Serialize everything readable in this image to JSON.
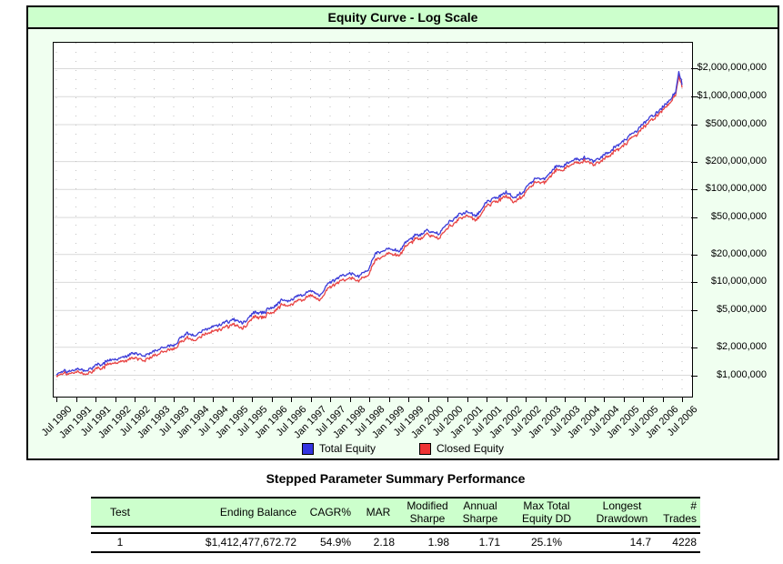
{
  "chart_data": {
    "type": "line",
    "title": "Equity Curve - Log Scale",
    "y_scale": "log",
    "ylim": [
      600000,
      3800000000
    ],
    "ylim_log10": [
      5.77,
      9.58
    ],
    "grid": "on",
    "legend_position": "bottom-center",
    "x_tick_labels": [
      "Jul 1990",
      "Jan 1991",
      "Jul 1991",
      "Jan 1992",
      "Jul 1992",
      "Jan 1993",
      "Jul 1993",
      "Jan 1994",
      "Jul 1994",
      "Jan 1995",
      "Jul 1995",
      "Jan 1996",
      "Jul 1996",
      "Jan 1997",
      "Jul 1997",
      "Jan 1998",
      "Jul 1998",
      "Jan 1999",
      "Jul 1999",
      "Jan 2000",
      "Jul 2000",
      "Jan 2001",
      "Jul 2001",
      "Jan 2002",
      "Jul 2002",
      "Jan 2003",
      "Jul 2003",
      "Jan 2004",
      "Jul 2004",
      "Jan 2005",
      "Jul 2005",
      "Jan 2006",
      "Jul 2006"
    ],
    "y_ticks": [
      {
        "label": "$2,000,000,000",
        "value": 2000000000
      },
      {
        "label": "$1,000,000,000",
        "value": 1000000000
      },
      {
        "label": "$500,000,000",
        "value": 500000000
      },
      {
        "label": "$200,000,000",
        "value": 200000000
      },
      {
        "label": "$100,000,000",
        "value": 100000000
      },
      {
        "label": "$50,000,000",
        "value": 50000000
      },
      {
        "label": "$20,000,000",
        "value": 20000000
      },
      {
        "label": "$10,000,000",
        "value": 10000000
      },
      {
        "label": "$5,000,000",
        "value": 5000000
      },
      {
        "label": "$2,000,000",
        "value": 2000000
      },
      {
        "label": "$1,000,000",
        "value": 1000000
      }
    ],
    "x_months_start": "Jul 1990",
    "x_months_end": "Jul 2006",
    "series": [
      {
        "name": "Total Equity",
        "color": "#3b3bd8",
        "anchors_month_log10usd": [
          [
            0,
            6.01
          ],
          [
            6,
            6.08
          ],
          [
            9,
            6.05
          ],
          [
            12,
            6.11
          ],
          [
            18,
            6.17
          ],
          [
            24,
            6.23
          ],
          [
            27,
            6.2
          ],
          [
            30,
            6.27
          ],
          [
            36,
            6.32
          ],
          [
            40,
            6.45
          ],
          [
            42,
            6.42
          ],
          [
            48,
            6.52
          ],
          [
            54,
            6.6
          ],
          [
            57,
            6.56
          ],
          [
            60,
            6.66
          ],
          [
            66,
            6.71
          ],
          [
            69,
            6.8
          ],
          [
            72,
            6.82
          ],
          [
            78,
            6.91
          ],
          [
            81,
            6.87
          ],
          [
            84,
            7.01
          ],
          [
            90,
            7.11
          ],
          [
            93,
            7.07
          ],
          [
            96,
            7.16
          ],
          [
            98,
            7.31
          ],
          [
            102,
            7.36
          ],
          [
            105,
            7.33
          ],
          [
            108,
            7.46
          ],
          [
            114,
            7.56
          ],
          [
            117,
            7.52
          ],
          [
            120,
            7.63
          ],
          [
            123,
            7.71
          ],
          [
            126,
            7.76
          ],
          [
            129,
            7.72
          ],
          [
            132,
            7.86
          ],
          [
            138,
            7.96
          ],
          [
            141,
            7.92
          ],
          [
            144,
            8.01
          ],
          [
            147,
            8.11
          ],
          [
            150,
            8.12
          ],
          [
            153,
            8.24
          ],
          [
            156,
            8.26
          ],
          [
            159,
            8.32
          ],
          [
            162,
            8.34
          ],
          [
            165,
            8.3
          ],
          [
            168,
            8.37
          ],
          [
            171,
            8.45
          ],
          [
            174,
            8.53
          ],
          [
            177,
            8.6
          ],
          [
            180,
            8.69
          ],
          [
            183,
            8.8
          ],
          [
            186,
            8.89
          ],
          [
            188,
            8.96
          ],
          [
            190,
            9.04
          ],
          [
            191,
            9.26
          ],
          [
            192,
            9.15
          ]
        ]
      },
      {
        "name": "Closed Equity",
        "color": "#e84444",
        "anchors_month_log10usd": [
          [
            0,
            5.99
          ],
          [
            6,
            6.05
          ],
          [
            9,
            6.01
          ],
          [
            12,
            6.07
          ],
          [
            18,
            6.13
          ],
          [
            24,
            6.18
          ],
          [
            27,
            6.15
          ],
          [
            30,
            6.22
          ],
          [
            36,
            6.28
          ],
          [
            40,
            6.4
          ],
          [
            42,
            6.37
          ],
          [
            48,
            6.47
          ],
          [
            54,
            6.55
          ],
          [
            57,
            6.5
          ],
          [
            60,
            6.61
          ],
          [
            66,
            6.66
          ],
          [
            69,
            6.75
          ],
          [
            72,
            6.77
          ],
          [
            78,
            6.86
          ],
          [
            81,
            6.82
          ],
          [
            84,
            6.96
          ],
          [
            90,
            7.06
          ],
          [
            93,
            7.02
          ],
          [
            96,
            7.1
          ],
          [
            98,
            7.24
          ],
          [
            102,
            7.31
          ],
          [
            105,
            7.28
          ],
          [
            108,
            7.42
          ],
          [
            114,
            7.52
          ],
          [
            117,
            7.47
          ],
          [
            120,
            7.58
          ],
          [
            123,
            7.66
          ],
          [
            126,
            7.72
          ],
          [
            129,
            7.67
          ],
          [
            132,
            7.82
          ],
          [
            138,
            7.92
          ],
          [
            141,
            7.87
          ],
          [
            144,
            7.97
          ],
          [
            147,
            8.07
          ],
          [
            150,
            8.08
          ],
          [
            153,
            8.2
          ],
          [
            156,
            8.22
          ],
          [
            159,
            8.28
          ],
          [
            162,
            8.31
          ],
          [
            165,
            8.26
          ],
          [
            168,
            8.33
          ],
          [
            171,
            8.41
          ],
          [
            174,
            8.48
          ],
          [
            177,
            8.56
          ],
          [
            180,
            8.65
          ],
          [
            183,
            8.76
          ],
          [
            186,
            8.86
          ],
          [
            188,
            8.93
          ],
          [
            190,
            9.01
          ],
          [
            191,
            9.21
          ],
          [
            192,
            9.12
          ]
        ]
      }
    ],
    "legend": [
      {
        "label": "Total Equity",
        "color": "#3333e0"
      },
      {
        "label": "Closed Equity",
        "color": "#ee3333"
      }
    ]
  },
  "table": {
    "title": "Stepped Parameter Summary Performance",
    "columns": [
      "Test",
      "Ending Balance",
      "CAGR%",
      "MAR",
      "Modified\nSharpe",
      "Annual\nSharpe",
      "Max Total\nEquity DD",
      "Longest\nDrawdown",
      "# Trades"
    ],
    "rows": [
      [
        "1",
        "$1,412,477,672.72",
        "54.9%",
        "2.18",
        "1.98",
        "1.71",
        "25.1%",
        "14.7",
        "4228"
      ]
    ]
  },
  "colors": {
    "title_bar_bg": "#ccffcc",
    "chart_bg": "#f0fff0",
    "plot_bg": "#ffffff",
    "grid_solid": "#d9d9d9",
    "grid_dots": "#c2c2c2",
    "table_header_bg": "#ccffcc",
    "border": "#000000"
  }
}
